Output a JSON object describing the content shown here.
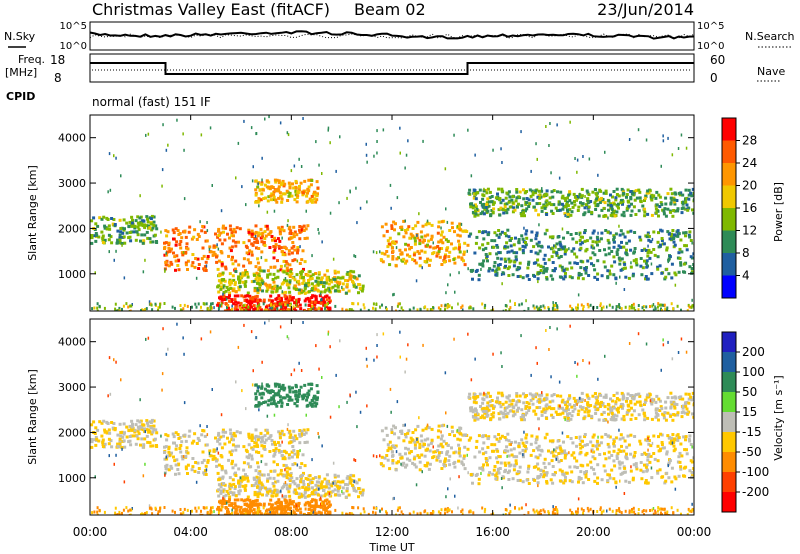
{
  "header": {
    "title": "Christmas Valley East (fitACF)",
    "beam": "Beam 02",
    "date": "23/Jun/2014"
  },
  "noise_panel": {
    "left_label": "N.Sky",
    "right_label": "N.Search",
    "left_ticks": [
      "10^5",
      "10^0"
    ],
    "right_ticks": [
      "10^5",
      "10^0"
    ]
  },
  "freq_panel": {
    "left_label_line1": "Freq.",
    "left_label_line2": "[MHz]",
    "right_label": "Nave",
    "left_ticks": [
      "18",
      "8"
    ],
    "right_ticks": [
      "60",
      "0"
    ],
    "freq_steps_hours": [
      [
        0,
        3,
        1
      ],
      [
        3,
        15,
        0
      ],
      [
        15,
        24,
        1
      ]
    ]
  },
  "cpid": {
    "label": "CPID",
    "mode": "normal (fast) 151 IF"
  },
  "power_panel": {
    "ylabel": "Slant Range [km]",
    "yticks": [
      "1000",
      "2000",
      "3000",
      "4000"
    ],
    "colorbar_label": "Power [dB]",
    "colorbar_ticks": [
      "28",
      "24",
      "20",
      "16",
      "12",
      "8",
      "4"
    ],
    "colorbar_colors": [
      "#ff0000",
      "#ff5a00",
      "#ff9600",
      "#f0c800",
      "#7fb800",
      "#2e8b57",
      "#1f5fa0",
      "#0000ff"
    ]
  },
  "velocity_panel": {
    "ylabel": "Slant Range [km]",
    "yticks": [
      "1000",
      "2000",
      "3000",
      "4000"
    ],
    "colorbar_label": "Velocity [m s⁻¹]",
    "colorbar_ticks": [
      "200",
      "100",
      "50",
      "15",
      "-15",
      "-50",
      "-100",
      "-200"
    ],
    "colorbar_colors": [
      "#2020c0",
      "#1f5fa0",
      "#2e8b57",
      "#64dc32",
      "#bebeb6",
      "#ffc800",
      "#ff8c00",
      "#ff4000",
      "#ff0000"
    ]
  },
  "xaxis": {
    "label": "Time UT",
    "ticks": [
      "00:00",
      "04:00",
      "08:00",
      "12:00",
      "16:00",
      "20:00",
      "00:00"
    ]
  },
  "chart_data": {
    "type": "heatmap",
    "x_unit": "hours UT",
    "xlim": [
      0,
      24
    ],
    "ylim_km": [
      180,
      4500
    ],
    "echo_regions": [
      {
        "t0": 0.0,
        "t1": 2.6,
        "r0": 1700,
        "r1": 2300,
        "power_db": 10,
        "velocity": -15
      },
      {
        "t0": 2.9,
        "t1": 8.6,
        "r0": 1100,
        "r1": 2100,
        "power_db": 22,
        "velocity": -15
      },
      {
        "t0": 5.0,
        "t1": 10.8,
        "r0": 600,
        "r1": 1100,
        "power_db": 14,
        "velocity": -15
      },
      {
        "t0": 6.5,
        "t1": 9.0,
        "r0": 2600,
        "r1": 3100,
        "power_db": 18,
        "velocity": 60
      },
      {
        "t0": 5.0,
        "t1": 9.5,
        "r0": 180,
        "r1": 550,
        "power_db": 28,
        "velocity": -60
      },
      {
        "t0": 11.5,
        "t1": 15.0,
        "r0": 1200,
        "r1": 2200,
        "power_db": 18,
        "velocity": -15
      },
      {
        "t0": 15.0,
        "t1": 24.0,
        "r0": 2300,
        "r1": 2900,
        "power_db": 10,
        "velocity": -15
      },
      {
        "t0": 15.0,
        "t1": 24.0,
        "r0": 900,
        "r1": 2000,
        "power_db": 8,
        "velocity": -15
      }
    ]
  }
}
